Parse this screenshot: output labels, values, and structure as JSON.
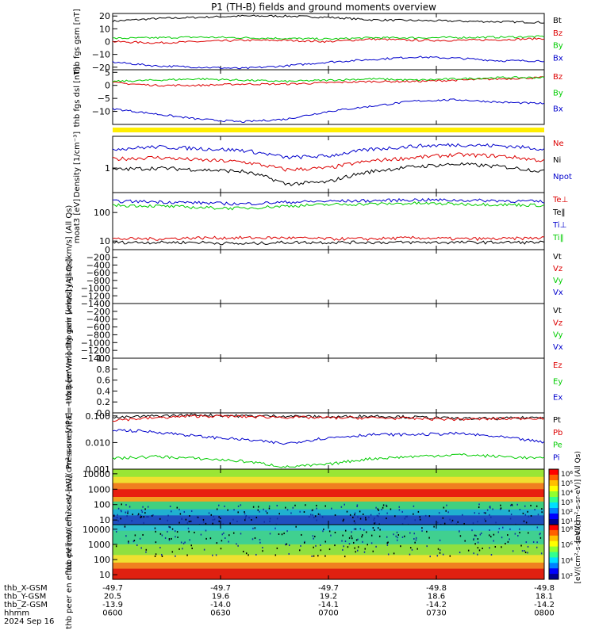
{
  "title": "P1 (TH-B) fields and ground moments overview",
  "date": "2024 Sep 16",
  "x_axis": {
    "rows": [
      {
        "label": "thb_X-GSM",
        "values": [
          "-49.7",
          "-49.7",
          "-49.7",
          "-49.8",
          "-49.8"
        ]
      },
      {
        "label": "thb_Y-GSM",
        "values": [
          "20.5",
          "19.6",
          "19.2",
          "18.6",
          "18.1"
        ]
      },
      {
        "label": "thb_Z-GSM",
        "values": [
          "-13.9",
          "-14.0",
          "-14.1",
          "-14.2",
          "-14.2"
        ]
      },
      {
        "label": "hhmm",
        "values": [
          "0600",
          "0630",
          "0700",
          "0730",
          "0800"
        ]
      }
    ]
  },
  "colorbar": {
    "label_top": "[eV/(cm²-s-sr-eV)] (All Qs)",
    "label_bottom": "[eV/(cm²-s-sr-eV)]",
    "ticks_top": [
      "10⁶",
      "10⁵",
      "10⁴",
      "10³",
      "10²",
      "10¹"
    ],
    "ticks_bottom": [
      "10⁸",
      "10⁶",
      "10⁴",
      "10²"
    ]
  },
  "chart_data": [
    {
      "type": "line",
      "panel": 1,
      "ylabel": "thb fgs gsm [nT]",
      "ylim": [
        -22,
        22
      ],
      "ticks": [
        "20",
        "10",
        "0",
        "−10",
        "−20"
      ],
      "series": [
        {
          "name": "Bt",
          "color": "#000000",
          "values": [
            16,
            18,
            19,
            20,
            20,
            19,
            17,
            16.5,
            16,
            15.5,
            15
          ]
        },
        {
          "name": "Bz",
          "color": "#dd0000",
          "values": [
            0,
            -1,
            0,
            1,
            1,
            0,
            2,
            1,
            1,
            1.5,
            2.5
          ]
        },
        {
          "name": "By",
          "color": "#00cc00",
          "values": [
            2.5,
            3,
            3.5,
            3,
            2.5,
            2,
            3,
            3,
            3.2,
            3.5,
            4
          ]
        },
        {
          "name": "Bx",
          "color": "#0000cc",
          "values": [
            -16,
            -19,
            -20,
            -21,
            -19,
            -16,
            -14,
            -12,
            -13,
            -15,
            -15
          ]
        }
      ]
    },
    {
      "type": "line",
      "panel": 2,
      "ylabel": "thb fgs dsl [nT]",
      "ylim": [
        -15,
        6
      ],
      "ticks": [
        "5",
        "0",
        "−5",
        "−10"
      ],
      "series": [
        {
          "name": "Bz",
          "color": "#dd0000",
          "values": [
            1,
            0,
            0,
            0.5,
            0.5,
            1,
            1.5,
            1.5,
            2,
            2.5,
            3
          ]
        },
        {
          "name": "By",
          "color": "#00cc00",
          "values": [
            1.5,
            2,
            2.5,
            2,
            1.5,
            2,
            2.5,
            2,
            2.5,
            3,
            3
          ]
        },
        {
          "name": "Bx",
          "color": "#0000cc",
          "values": [
            -9,
            -11,
            -13,
            -14,
            -13,
            -10,
            -8,
            -6,
            -5.5,
            -6.5,
            -7
          ]
        }
      ]
    },
    {
      "type": "line",
      "panel": 3,
      "ylabel": "Density [1/cm⁻³]",
      "ylog": true,
      "ylim": [
        0.2,
        8
      ],
      "ticks": [
        "1"
      ],
      "series": [
        {
          "name": "Ne",
          "color": "#dd0000",
          "values": [
            1.8,
            2.0,
            1.7,
            1.5,
            0.9,
            1.0,
            1.6,
            2.0,
            2.4,
            2.2,
            1.6
          ]
        },
        {
          "name": "Ni",
          "color": "#000000",
          "values": [
            0.9,
            1.0,
            0.9,
            0.8,
            0.35,
            0.4,
            0.8,
            1.1,
            1.3,
            1.1,
            0.8
          ]
        },
        {
          "name": "Npot",
          "color": "#0000cc",
          "values": [
            3.5,
            4.0,
            3.6,
            3.2,
            2.0,
            2.2,
            3.4,
            4.2,
            4.6,
            4.3,
            3.5
          ]
        }
      ]
    },
    {
      "type": "line",
      "panel": 4,
      "ylabel": "moat3 [eV]",
      "ylog": true,
      "ylim": [
        5,
        500
      ],
      "ticks": [
        "100",
        "10"
      ],
      "series": [
        {
          "name": "Te⊥",
          "color": "#dd0000",
          "values": [
            12,
            12,
            13,
            13,
            13,
            12,
            12,
            13,
            12,
            12,
            13
          ]
        },
        {
          "name": "Te‖",
          "color": "#000000",
          "values": [
            9,
            9,
            9,
            8,
            9,
            9,
            9,
            9,
            9,
            9,
            9
          ]
        },
        {
          "name": "Ti⊥",
          "color": "#0000cc",
          "values": [
            250,
            240,
            220,
            200,
            230,
            250,
            260,
            280,
            270,
            260,
            240
          ]
        },
        {
          "name": "Ti‖",
          "color": "#00cc00",
          "values": [
            180,
            170,
            150,
            140,
            170,
            190,
            200,
            210,
            200,
            190,
            180
          ]
        }
      ]
    },
    {
      "type": "line",
      "panel": 5,
      "ylabel": "thb peir velocity gsm [km/s] (All Qs)",
      "ylim": [
        -1400,
        0
      ],
      "ticks": [
        "0",
        "−200",
        "−400",
        "−600",
        "−800",
        "−1000",
        "−1200",
        "−1400"
      ],
      "series": [
        {
          "name": "Vt",
          "color": "#000000",
          "values": []
        },
        {
          "name": "Vz",
          "color": "#dd0000",
          "values": []
        },
        {
          "name": "Vy",
          "color": "#00cc00",
          "values": []
        },
        {
          "name": "Vx",
          "color": "#0000cc",
          "values": []
        }
      ]
    },
    {
      "type": "line",
      "panel": 6,
      "ylabel": "thb peer velocity gsm [km/s] (All Qs)",
      "ylim": [
        -1400,
        0
      ],
      "ticks": [
        "0",
        "−200",
        "−400",
        "−600",
        "−800",
        "−1000",
        "−1200",
        "−1400"
      ],
      "series": [
        {
          "name": "Vt",
          "color": "#000000",
          "values": []
        },
        {
          "name": "Vz",
          "color": "#dd0000",
          "values": []
        },
        {
          "name": "Vy",
          "color": "#00cc00",
          "values": []
        },
        {
          "name": "Vx",
          "color": "#0000cc",
          "values": []
        }
      ]
    },
    {
      "type": "line",
      "panel": 7,
      "ylabel": "E=−VxB [mV/m]",
      "ylim": [
        0,
        1
      ],
      "ticks": [
        "1.0",
        "0.8",
        "0.6",
        "0.4",
        "0.2",
        "0.0"
      ],
      "series": [
        {
          "name": "Ez",
          "color": "#dd0000",
          "values": []
        },
        {
          "name": "Ey",
          "color": "#00cc00",
          "values": []
        },
        {
          "name": "Ex",
          "color": "#0000cc",
          "values": []
        }
      ]
    },
    {
      "type": "line",
      "panel": 8,
      "ylabel": "Pressure [nPa]",
      "ylog": true,
      "ylim": [
        0.001,
        0.13
      ],
      "ticks": [
        "0.100",
        "0.010",
        "0.001"
      ],
      "series": [
        {
          "name": "Pt",
          "color": "#000000",
          "values": [
            0.085,
            0.1,
            0.11,
            0.1,
            0.1,
            0.09,
            0.1,
            0.09,
            0.08,
            0.08,
            0.09
          ]
        },
        {
          "name": "Pb",
          "color": "#dd0000",
          "values": [
            0.07,
            0.085,
            0.1,
            0.095,
            0.09,
            0.085,
            0.085,
            0.08,
            0.075,
            0.078,
            0.085
          ]
        },
        {
          "name": "Pe",
          "color": "#00cc00",
          "values": [
            0.0025,
            0.003,
            0.0025,
            0.002,
            0.0012,
            0.0015,
            0.0025,
            0.003,
            0.0035,
            0.003,
            0.0025
          ]
        },
        {
          "name": "Pi",
          "color": "#0000cc",
          "values": [
            0.03,
            0.025,
            0.017,
            0.013,
            0.009,
            0.015,
            0.02,
            0.02,
            0.022,
            0.016,
            0.01
          ]
        }
      ]
    },
    {
      "type": "heatmap",
      "panel": 9,
      "ylabel": "thb peir en eflux eV [eV/(cm²-s-sr-eV)]",
      "ylog": true,
      "ylim": [
        5,
        20000
      ],
      "ticks": [
        "10000",
        "1000",
        "100",
        "10"
      ]
    },
    {
      "type": "heatmap",
      "panel": 10,
      "ylabel": "thb peer en eflux eV [eV/(cm²-s-sr-eV)]",
      "ylog": true,
      "ylim": [
        5,
        20000
      ],
      "ticks": [
        "10000",
        "1000",
        "100",
        "10"
      ]
    }
  ]
}
